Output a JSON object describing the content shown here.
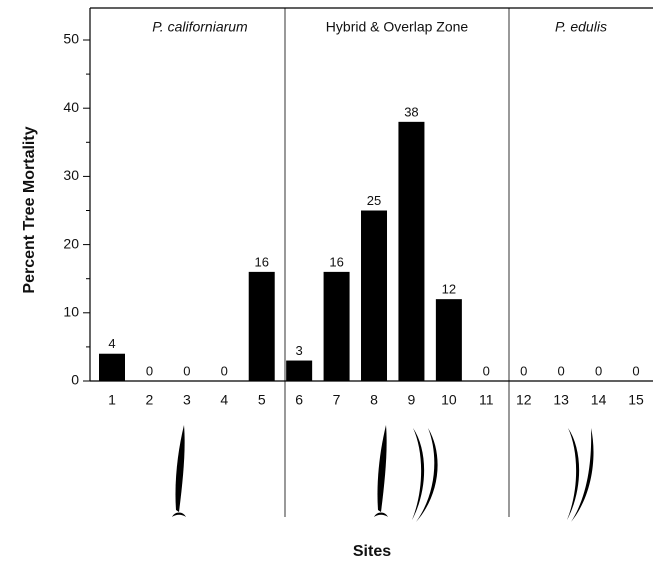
{
  "chart_data": {
    "type": "bar",
    "y_label": "Percent Tree Mortality",
    "x_label": "Sites",
    "categories": [
      "1",
      "2",
      "3",
      "4",
      "5",
      "6",
      "7",
      "8",
      "9",
      "10",
      "11",
      "12",
      "13",
      "14",
      "15"
    ],
    "values": [
      4,
      0,
      0,
      0,
      16,
      3,
      16,
      25,
      38,
      12,
      0,
      0,
      0,
      0,
      0
    ],
    "color": "#000000",
    "ylim": [
      0,
      52
    ],
    "yticks": [
      0,
      10,
      20,
      30,
      40,
      50
    ],
    "minor_yticks": [
      5,
      15,
      25,
      35,
      45
    ],
    "zones": [
      {
        "label": "P. californiarum",
        "italic": true
      },
      {
        "label": "Hybrid & Overlap Zone",
        "italic": false
      },
      {
        "label": "P. edulis",
        "italic": true
      }
    ]
  }
}
